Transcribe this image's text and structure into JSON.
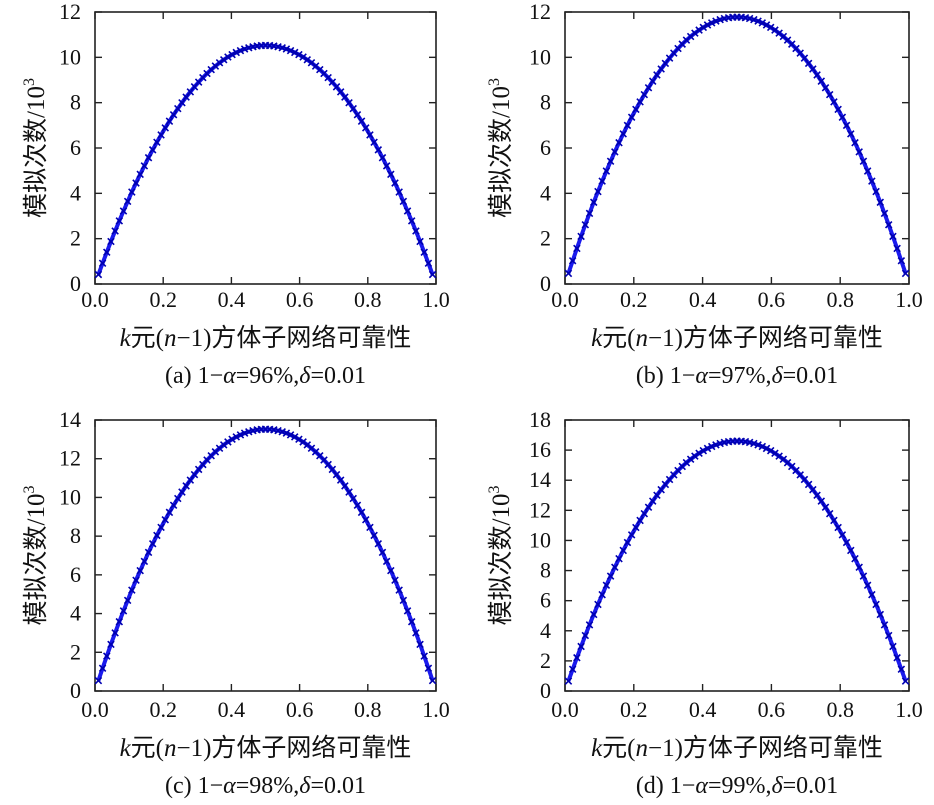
{
  "chart_data": [
    {
      "type": "line",
      "caption": "(a) 1−α=96%,δ=0.01",
      "xlabel": "k元(n−1)方体子网络可靠性",
      "ylabel": "模拟次数/10",
      "ylabel_sup": "3",
      "xlim": [
        0,
        1
      ],
      "ylim": [
        0,
        12
      ],
      "xticks": [
        0,
        0.2,
        0.4,
        0.6,
        0.8,
        1
      ],
      "xtick_labels": [
        "0.0",
        "0.2",
        "0.4",
        "0.6",
        "0.8",
        "1.0"
      ],
      "yticks": [
        0,
        2,
        4,
        6,
        8,
        10,
        12
      ],
      "ytick_labels": [
        "0",
        "2",
        "4",
        "6",
        "8",
        "10",
        "12"
      ],
      "series": [
        {
          "formula": "y = 42.1 * x * (1 - x)",
          "x_range": [
            0.01,
            0.99
          ],
          "y_range": [
            0.42,
            10.5
          ],
          "color": "#1a1aee",
          "marker": "x"
        }
      ]
    },
    {
      "type": "line",
      "caption": "(b) 1−α=97%,δ=0.01",
      "xlabel": "k元(n−1)方体子网络可靠性",
      "ylabel": "模拟次数/10",
      "ylabel_sup": "3",
      "xlim": [
        0,
        1
      ],
      "ylim": [
        0,
        12
      ],
      "xticks": [
        0,
        0.2,
        0.4,
        0.6,
        0.8,
        1
      ],
      "xtick_labels": [
        "0.0",
        "0.2",
        "0.4",
        "0.6",
        "0.8",
        "1.0"
      ],
      "yticks": [
        0,
        2,
        4,
        6,
        8,
        10,
        12
      ],
      "ytick_labels": [
        "0",
        "2",
        "4",
        "6",
        "8",
        "10",
        "12"
      ],
      "series": [
        {
          "formula": "y = 47.1 * x * (1 - x)",
          "x_range": [
            0.01,
            0.99
          ],
          "y_range": [
            0.47,
            11.8
          ],
          "color": "#1a1aee",
          "marker": "x"
        }
      ]
    },
    {
      "type": "line",
      "caption": "(c) 1−α=98%,δ=0.01",
      "xlabel": "k元(n−1)方体子网络可靠性",
      "ylabel": "模拟次数/10",
      "ylabel_sup": "3",
      "xlim": [
        0,
        1
      ],
      "ylim": [
        0,
        14
      ],
      "xticks": [
        0,
        0.2,
        0.4,
        0.6,
        0.8,
        1
      ],
      "xtick_labels": [
        "0.0",
        "0.2",
        "0.4",
        "0.6",
        "0.8",
        "1.0"
      ],
      "yticks": [
        0,
        2,
        4,
        6,
        8,
        10,
        12,
        14
      ],
      "ytick_labels": [
        "0",
        "2",
        "4",
        "6",
        "8",
        "10",
        "12",
        "14"
      ],
      "series": [
        {
          "formula": "y = 54.1 * x * (1 - x)",
          "x_range": [
            0.01,
            0.99
          ],
          "y_range": [
            0.54,
            13.5
          ],
          "color": "#1a1aee",
          "marker": "x"
        }
      ]
    },
    {
      "type": "line",
      "caption": "(d) 1−α=99%,δ=0.01",
      "xlabel": "k元(n−1)方体子网络可靠性",
      "ylabel": "模拟次数/10",
      "ylabel_sup": "3",
      "xlim": [
        0,
        1
      ],
      "ylim": [
        0,
        18
      ],
      "xticks": [
        0,
        0.2,
        0.4,
        0.6,
        0.8,
        1
      ],
      "xtick_labels": [
        "0.0",
        "0.2",
        "0.4",
        "0.6",
        "0.8",
        "1.0"
      ],
      "yticks": [
        0,
        2,
        4,
        6,
        8,
        10,
        12,
        14,
        16,
        18
      ],
      "ytick_labels": [
        "0",
        "2",
        "4",
        "6",
        "8",
        "10",
        "12",
        "14",
        "16",
        "18"
      ],
      "series": [
        {
          "formula": "y = 66.4 * x * (1 - x)",
          "x_range": [
            0.01,
            0.99
          ],
          "y_range": [
            0.66,
            16.6
          ],
          "color": "#1a1aee",
          "marker": "x"
        }
      ]
    }
  ]
}
